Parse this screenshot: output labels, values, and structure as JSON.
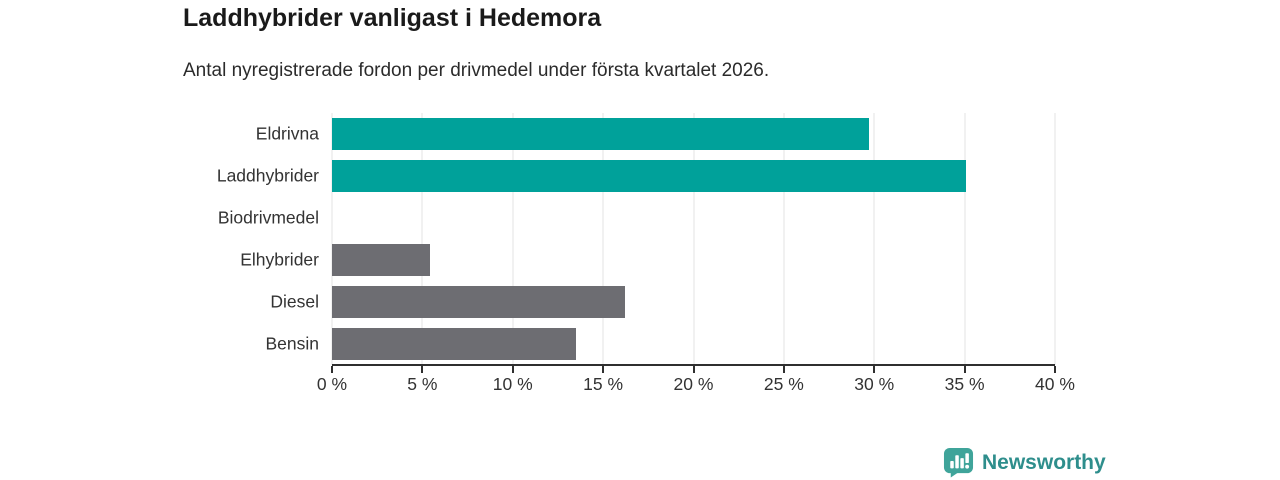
{
  "chart_data": {
    "type": "bar",
    "orientation": "horizontal",
    "title": "Laddhybrider vanligast i Hedemora",
    "subtitle": "Antal nyregistrerade fordon per drivmedel under första kvartalet 2026.",
    "categories": [
      "Eldrivna",
      "Laddhybrider",
      "Biodrivmedel",
      "Elhybrider",
      "Diesel",
      "Bensin"
    ],
    "values": [
      29.7,
      35.1,
      0,
      5.4,
      16.2,
      13.5
    ],
    "unit": "%",
    "xlim": [
      0,
      40
    ],
    "x_ticks": [
      "0 %",
      "5 %",
      "10 %",
      "15 %",
      "20 %",
      "25 %",
      "30 %",
      "35 %",
      "40 %"
    ],
    "bar_colors": [
      "#00a19a",
      "#00a19a",
      "#6d6d72",
      "#6d6d72",
      "#6d6d72",
      "#6d6d72"
    ],
    "grid": "vertical",
    "legend": "none",
    "colors": {
      "accent_teal": "#00a19a",
      "neutral_gray": "#6d6d72",
      "gridline": "#e3e3e3",
      "axis": "#2f2f2f",
      "text": "#333333"
    }
  },
  "footer": {
    "brand": "Newsworthy",
    "logo_icon": "bar-chart-speech-bubble",
    "brand_color": "#2e8e8c",
    "icon_color": "#3fa49a"
  }
}
